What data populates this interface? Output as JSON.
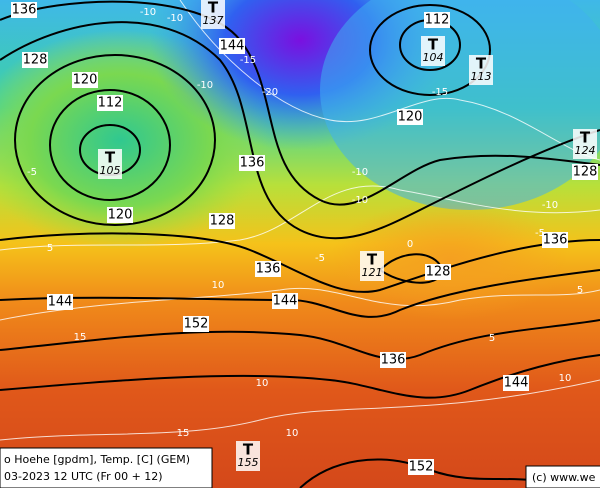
{
  "map": {
    "legend": {
      "line1": "o Hoehe [gpdm], Temp. [C] (GEM)",
      "line2": "03-2023 12 UTC (Fr 00 + 12)"
    },
    "copyright": "(c) www.we",
    "height_labels": [
      136,
      128,
      120,
      112,
      144,
      112,
      120,
      136,
      128,
      120,
      128,
      136,
      128,
      136,
      144,
      144,
      152,
      136,
      144,
      152
    ],
    "lows": [
      {
        "symbol": "T",
        "value": 105
      },
      {
        "symbol": "T",
        "value": 104
      },
      {
        "symbol": "T",
        "value": 113
      },
      {
        "symbol": "T",
        "value": 124
      },
      {
        "symbol": "T",
        "value": 121
      },
      {
        "symbol": "T",
        "value": 155
      },
      {
        "symbol": "T",
        "value": 137
      }
    ],
    "temp_labels": [
      -10,
      -10,
      -15,
      -20,
      -10,
      -5,
      5,
      -5,
      0,
      -10,
      -10,
      -10,
      -5,
      -15,
      10,
      15,
      10,
      15,
      10,
      5,
      5,
      10
    ]
  }
}
